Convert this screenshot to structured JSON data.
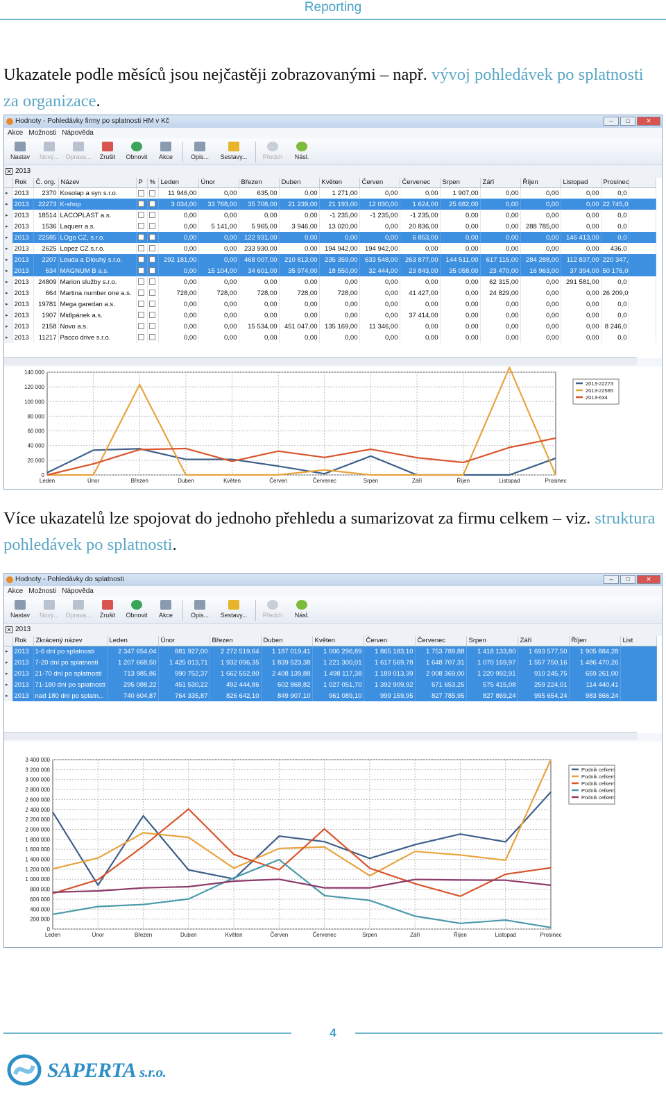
{
  "header": {
    "title": "Reporting"
  },
  "para1": {
    "text": "Ukazatele podle měsíců jsou nejčastěji zobrazovanými – např. ",
    "link": "vývoj pohledávek po splatnosti za organizace",
    "end": "."
  },
  "para2": {
    "text": "Více ukazatelů lze spojovat do jednoho přehledu a sumarizovat za firmu celkem – viz. ",
    "link": "struktura pohledávek po splatnosti",
    "end": "."
  },
  "toolbar": {
    "menu": [
      "Akce",
      "Možnosti",
      "Nápověda"
    ],
    "buttons": [
      "Nastav",
      "Nový...",
      "Oprava...",
      "Zrušit",
      "Obnovit",
      "Akce",
      "Opis...",
      "Sestavy...",
      "Předch",
      "Násl."
    ]
  },
  "window1": {
    "title": "Hodnoty - Pohledávky firmy po splatnosti HM v Kč",
    "tab": "2013",
    "columns": [
      "Rok",
      "Č. org.",
      "Název",
      "P",
      "%",
      "Leden",
      "Únor",
      "Březen",
      "Duben",
      "Květen",
      "Červen",
      "Červenec",
      "Srpen",
      "Září",
      "Říjen",
      "Listopad",
      "Prosinec"
    ],
    "rows": [
      {
        "rok": "2013",
        "org": "2370",
        "nazev": "Kosolap a syn s.r.o.",
        "vals": [
          "11 946,00",
          "0,00",
          "635,00",
          "0,00",
          "1 271,00",
          "0,00",
          "0,00",
          "1 907,00",
          "0,00",
          "0,00",
          "0,00",
          "0,0"
        ]
      },
      {
        "rok": "2013",
        "org": "22273",
        "nazev": "K-shop",
        "vals": [
          "3 034,00",
          "33 768,00",
          "35 708,00",
          "21 239,00",
          "21 193,00",
          "12 030,00",
          "1 624,00",
          "25 682,00",
          "0,00",
          "0,00",
          "0,00",
          "22 745,0"
        ]
      },
      {
        "rok": "2013",
        "org": "18514",
        "nazev": "LACOPLAST a.s.",
        "vals": [
          "0,00",
          "0,00",
          "0,00",
          "0,00",
          "-1 235,00",
          "-1 235,00",
          "-1 235,00",
          "0,00",
          "0,00",
          "0,00",
          "0,00",
          "0,0"
        ]
      },
      {
        "rok": "2013",
        "org": "1536",
        "nazev": "Laquerr a.s.",
        "vals": [
          "0,00",
          "5 141,00",
          "5 965,00",
          "3 946,00",
          "13 020,00",
          "0,00",
          "20 836,00",
          "0,00",
          "0,00",
          "288 785,00",
          "0,00",
          "0,0"
        ]
      },
      {
        "rok": "2013",
        "org": "22585",
        "nazev": "LOgo CZ, s.r.o.",
        "vals": [
          "0,00",
          "0,00",
          "122 931,00",
          "0,00",
          "0,00",
          "0,00",
          "6 853,00",
          "0,00",
          "0,00",
          "0,00",
          "146 413,00",
          "0,0"
        ]
      },
      {
        "rok": "2013",
        "org": "2625",
        "nazev": "Lopez CZ s.r.o.",
        "vals": [
          "0,00",
          "0,00",
          "233 930,00",
          "0,00",
          "194 942,00",
          "194 942,00",
          "0,00",
          "0,00",
          "0,00",
          "0,00",
          "0,00",
          "436,0"
        ]
      },
      {
        "rok": "2013",
        "org": "2207",
        "nazev": "Louda a Dlouhý s.r.o.",
        "vals": [
          "292 181,00",
          "0,00",
          "468 007,00",
          "210 813,00",
          "235 359,00",
          "633 548,00",
          "263 877,00",
          "144 511,00",
          "617 115,00",
          "284 288,00",
          "112 837,00",
          "220 347,0"
        ]
      },
      {
        "rok": "2013",
        "org": "634",
        "nazev": "MAGNUM B a.s.",
        "vals": [
          "0,00",
          "15 104,00",
          "34 601,00",
          "35 974,00",
          "18 550,00",
          "32 444,00",
          "23 843,00",
          "35 058,00",
          "23 470,00",
          "16 963,00",
          "37 394,00",
          "50 176,0"
        ]
      },
      {
        "rok": "2013",
        "org": "24809",
        "nazev": "Marion služby s.r.o.",
        "vals": [
          "0,00",
          "0,00",
          "0,00",
          "0,00",
          "0,00",
          "0,00",
          "0,00",
          "0,00",
          "62 315,00",
          "0,00",
          "291 581,00",
          "0,0"
        ]
      },
      {
        "rok": "2013",
        "org": "664",
        "nazev": "Martina number one a.s.",
        "vals": [
          "728,00",
          "728,00",
          "728,00",
          "728,00",
          "728,00",
          "0,00",
          "41 427,00",
          "0,00",
          "24 829,00",
          "0,00",
          "0,00",
          "26 209,0"
        ]
      },
      {
        "rok": "2013",
        "org": "19781",
        "nazev": "Mega garedan a.s.",
        "vals": [
          "0,00",
          "0,00",
          "0,00",
          "0,00",
          "0,00",
          "0,00",
          "0,00",
          "0,00",
          "0,00",
          "0,00",
          "0,00",
          "0,0"
        ]
      },
      {
        "rok": "2013",
        "org": "1907",
        "nazev": "Midlpánek a.s.",
        "vals": [
          "0,00",
          "0,00",
          "0,00",
          "0,00",
          "0,00",
          "0,00",
          "37 414,00",
          "0,00",
          "0,00",
          "0,00",
          "0,00",
          "0,0"
        ]
      },
      {
        "rok": "2013",
        "org": "2158",
        "nazev": "Novo a.s.",
        "vals": [
          "0,00",
          "0,00",
          "15 534,00",
          "451 047,00",
          "135 169,00",
          "11 346,00",
          "0,00",
          "0,00",
          "0,00",
          "0,00",
          "0,00",
          "8 246,0"
        ]
      },
      {
        "rok": "2013",
        "org": "11217",
        "nazev": "Pacco drive s.r.o.",
        "vals": [
          "0,00",
          "0,00",
          "0,00",
          "0,00",
          "0,00",
          "0,00",
          "0,00",
          "0,00",
          "0,00",
          "0,00",
          "0,00",
          "0,0"
        ]
      }
    ],
    "selected": [
      1,
      4,
      6,
      7
    ]
  },
  "window2": {
    "title": "Hodnoty - Pohledávky do splatnosti",
    "tab": "2013",
    "columns": [
      "Rok",
      "Zkrácený název",
      "Leden",
      "Únor",
      "Březen",
      "Duben",
      "Květen",
      "Červen",
      "Červenec",
      "Srpen",
      "Září",
      "Říjen",
      "List"
    ],
    "rows": [
      {
        "rok": "2013",
        "nazev": "1-6 dní po splatnosti",
        "vals": [
          "2 347 654,04",
          "881 927,00",
          "2 272 519,64",
          "1 187 019,41",
          "1 006 296,89",
          "1 865 183,10",
          "1 753 789,88",
          "1 418 133,80",
          "1 693 577,50",
          "1 905 884,28"
        ]
      },
      {
        "rok": "2013",
        "nazev": "7-20 dní po splatnosti",
        "vals": [
          "1 207 668,50",
          "1 425 013,71",
          "1 932 096,35",
          "1 839 523,38",
          "1 221 300,01",
          "1 617 569,78",
          "1 648 707,31",
          "1 070 169,97",
          "1 557 750,16",
          "1 486 470,26"
        ]
      },
      {
        "rok": "2013",
        "nazev": "21-70 dní po splatnosti",
        "vals": [
          "713 985,86",
          "990 752,37",
          "1 662 552,80",
          "2 408 139,88",
          "1 498 117,38",
          "1 189 013,39",
          "2 008 369,00",
          "1 220 992,91",
          "910 245,75",
          "659 261,00"
        ]
      },
      {
        "rok": "2013",
        "nazev": "71-180 dní po splatnosti",
        "vals": [
          "295 088,22",
          "451 530,22",
          "492 444,86",
          "602 868,82",
          "1 027 051,70",
          "1 392 909,92",
          "671 653,25",
          "575 415,08",
          "259 224,01",
          "114 440,41"
        ]
      },
      {
        "rok": "2013",
        "nazev": "nad 180 dní po splatn...",
        "vals": [
          "740 604,87",
          "764 335,87",
          "826 642,10",
          "849 907,10",
          "961 089,10",
          "999 159,95",
          "827 785,95",
          "827 869,24",
          "995 654,24",
          "983 866,24"
        ]
      }
    ]
  },
  "chart_data": [
    {
      "type": "line",
      "categories": [
        "Leden",
        "Únor",
        "Březen",
        "Duben",
        "Květen",
        "Červen",
        "Červenec",
        "Srpen",
        "Září",
        "Říjen",
        "Listopad",
        "Prosinec"
      ],
      "ylim": [
        0,
        140000
      ],
      "yticks": [
        "0",
        "20 000",
        "40 000",
        "60 000",
        "80 000",
        "100 000",
        "120 000",
        "140 000"
      ],
      "grid": true,
      "legend_position": "right",
      "series": [
        {
          "name": "2013-22273",
          "color": "#3e5f8a",
          "values": [
            3034,
            33768,
            35708,
            21239,
            21193,
            12030,
            1624,
            25682,
            0,
            0,
            0,
            22745
          ]
        },
        {
          "name": "2013-22585",
          "color": "#e8a33d",
          "values": [
            0,
            0,
            122931,
            0,
            0,
            0,
            6853,
            0,
            0,
            0,
            146413,
            0
          ]
        },
        {
          "name": "2013-634",
          "color": "#d9542b",
          "values": [
            0,
            15104,
            34601,
            35974,
            18550,
            32444,
            23843,
            35058,
            23470,
            16963,
            37394,
            50176
          ]
        }
      ]
    },
    {
      "type": "line",
      "categories": [
        "Leden",
        "Únor",
        "Březen",
        "Duben",
        "Květen",
        "Červen",
        "Červenec",
        "Srpen",
        "Září",
        "Říjen",
        "Listopad",
        "Prosinec"
      ],
      "ylim": [
        0,
        3400000
      ],
      "yticks": [
        "0",
        "200 000",
        "400 000",
        "600 000",
        "800 000",
        "1 000 000",
        "1 200 000",
        "1 400 000",
        "1 600 000",
        "1 800 000",
        "2 000 000",
        "2 200 000",
        "2 400 000",
        "2 600 000",
        "2 800 000",
        "3 000 000",
        "3 200 000",
        "3 400 000"
      ],
      "grid": true,
      "legend_position": "right",
      "series": [
        {
          "name": "Podnik celkem",
          "color": "#3e5f8a",
          "values": [
            2347654,
            881927,
            2272519,
            1187019,
            1006296,
            1865183,
            1753789,
            1418133,
            1693577,
            1905884,
            1750000,
            2750000
          ]
        },
        {
          "name": "Podnik celkem",
          "color": "#e8a33d",
          "values": [
            1207668,
            1425013,
            1932096,
            1839523,
            1221300,
            1617569,
            1648707,
            1070169,
            1557750,
            1486470,
            1380000,
            3400000
          ]
        },
        {
          "name": "Podnik celkem",
          "color": "#d9542b",
          "values": [
            713985,
            990752,
            1662552,
            2408139,
            1498117,
            1189013,
            2008369,
            1220992,
            910245,
            659261,
            1100000,
            1230000
          ]
        },
        {
          "name": "Podnik celkem",
          "color": "#4a9aa8",
          "values": [
            295088,
            451530,
            492444,
            602868,
            1027051,
            1392909,
            671653,
            575415,
            259224,
            114440,
            180000,
            30000
          ]
        },
        {
          "name": "Podnik celkem",
          "color": "#8c3a6a",
          "values": [
            740604,
            764335,
            826642,
            849907,
            961089,
            999159,
            827785,
            827869,
            995654,
            983866,
            980000,
            880000
          ]
        }
      ]
    }
  ],
  "footer": {
    "page": "4",
    "logo_main": "SAPERTA",
    "logo_suffix": " s.r.o."
  }
}
